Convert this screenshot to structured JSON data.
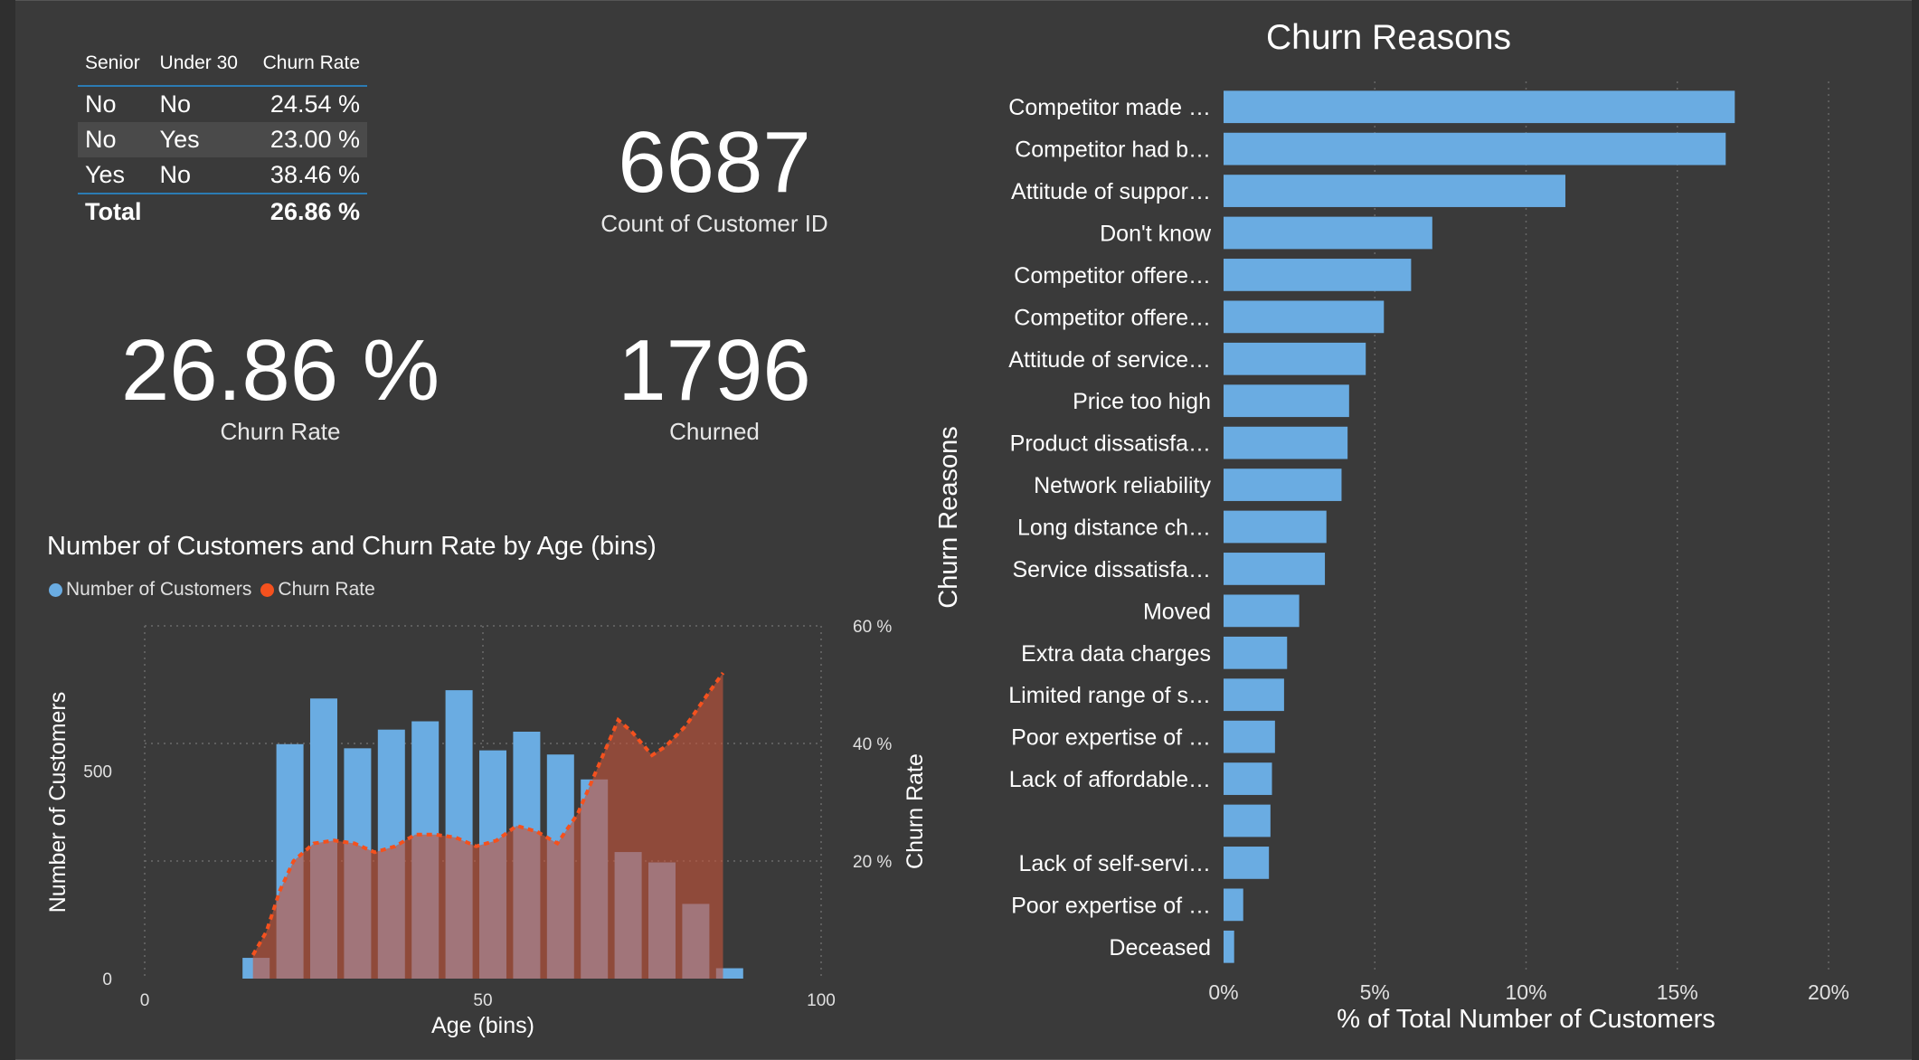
{
  "table": {
    "headers": [
      "Senior",
      "Under 30",
      "Churn Rate"
    ],
    "rows": [
      [
        "No",
        "No",
        "24.54 %"
      ],
      [
        "No",
        "Yes",
        "23.00 %"
      ],
      [
        "Yes",
        "No",
        "38.46 %"
      ]
    ],
    "total": [
      "Total",
      "",
      "26.86 %"
    ]
  },
  "cards": {
    "customers": {
      "value": "6687",
      "label": "Count of Customer ID"
    },
    "churn_rate": {
      "value": "26.86 %",
      "label": "Churn Rate"
    },
    "churned": {
      "value": "1796",
      "label": "Churned"
    }
  },
  "age_chart": {
    "title": "Number of Customers and Churn Rate by Age (bins)",
    "legend": [
      {
        "name": "Number of Customers",
        "color": "#6aace2"
      },
      {
        "name": "Churn Rate",
        "color": "#f4511e"
      }
    ]
  },
  "reasons_chart": {
    "title": "Churn Reasons"
  },
  "chart_data": [
    {
      "type": "bar+line",
      "title": "Number of Customers and Churn Rate by Age (bins)",
      "xlabel": "Age (bins)",
      "ylabel": "Number of Customers",
      "y2label": "Churn Rate",
      "xlim": [
        0,
        100
      ],
      "ylim": [
        0,
        850
      ],
      "y2lim": [
        0,
        60
      ],
      "xticks": [
        "0",
        "50",
        "100"
      ],
      "yticks": [
        "0",
        "500"
      ],
      "y2ticks": [
        "20 %",
        "40 %",
        "60 %"
      ],
      "x": [
        15,
        20,
        25,
        30,
        35,
        40,
        45,
        50,
        55,
        60,
        65,
        70,
        75,
        80,
        85
      ],
      "series": [
        {
          "name": "Number of Customers",
          "type": "bar",
          "values": [
            50,
            565,
            675,
            555,
            600,
            620,
            695,
            550,
            595,
            540,
            480,
            305,
            280,
            180,
            25
          ]
        },
        {
          "name": "Churn Rate",
          "type": "area-line",
          "x": [
            16,
            18,
            20,
            22,
            25,
            28,
            31,
            34,
            37,
            40,
            43,
            46,
            49,
            52,
            55,
            58,
            61,
            64,
            67,
            70,
            72,
            75,
            77,
            80,
            83,
            85.5
          ],
          "values": [
            4,
            8,
            15,
            20,
            23,
            23.5,
            23,
            21.5,
            22.5,
            24.5,
            24.5,
            24,
            22.5,
            23.5,
            26,
            25,
            23,
            28,
            36,
            44,
            42,
            38,
            39.5,
            43,
            48,
            52
          ]
        }
      ]
    },
    {
      "type": "bar-horizontal",
      "title": "Churn Reasons",
      "ylabel": "Churn Reasons",
      "xlabel": "% of Total Number of Customers",
      "xlim": [
        0,
        20
      ],
      "xticks": [
        "0%",
        "5%",
        "10%",
        "15%",
        "20%"
      ],
      "categories": [
        "Competitor made …",
        "Competitor had b…",
        "Attitude of suppor…",
        "Don't know",
        "Competitor offere…",
        "Competitor offere…",
        "Attitude of service…",
        "Price too high",
        "Product dissatisfa…",
        "Network reliability",
        "Long distance ch…",
        "Service dissatisfa…",
        "Moved",
        "Extra data charges",
        "Limited range of s…",
        "Poor expertise of …",
        "Lack of affordable…",
        "",
        "Lack of self-servi…",
        "Poor expertise of …",
        "Deceased"
      ],
      "values": [
        16.9,
        16.6,
        11.3,
        6.9,
        6.2,
        5.3,
        4.7,
        4.15,
        4.1,
        3.9,
        3.4,
        3.35,
        2.5,
        2.1,
        2.0,
        1.7,
        1.6,
        1.55,
        1.5,
        0.65,
        0.35
      ]
    }
  ]
}
